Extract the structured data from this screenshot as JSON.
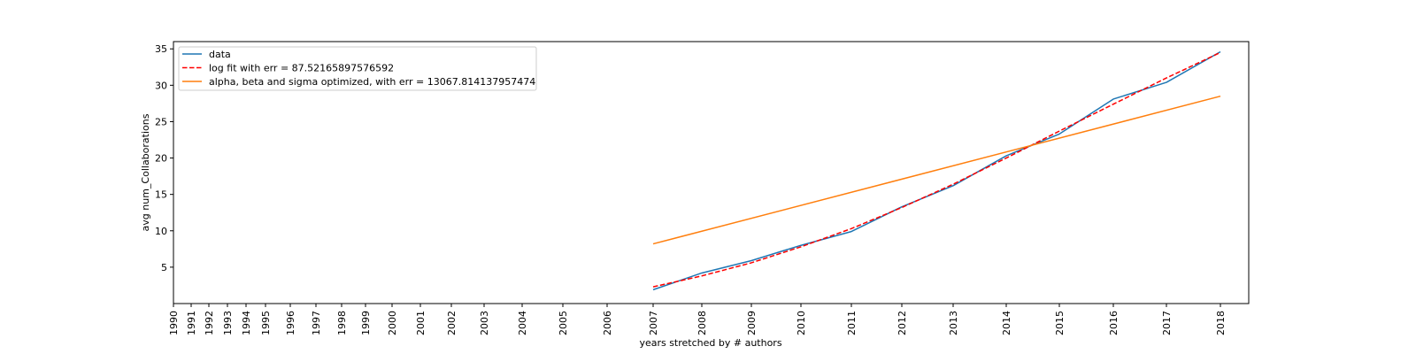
{
  "chart_data": {
    "type": "line",
    "xlabel": "years stretched by # authors",
    "ylabel": "avg num_Collaborations",
    "ylim": [
      0,
      36
    ],
    "yticks": [
      5,
      10,
      15,
      20,
      25,
      30,
      35
    ],
    "x_tick_labels": [
      "1990",
      "1991",
      "1992",
      "1993",
      "1994",
      "1995",
      "1996",
      "1997",
      "1998",
      "1999",
      "2000",
      "2001",
      "2002",
      "2003",
      "2004",
      "2005",
      "2006",
      "2007",
      "2008",
      "2009",
      "2010",
      "2011",
      "2012",
      "2013",
      "2014",
      "2015",
      "2016",
      "2017",
      "2018"
    ],
    "grid": false,
    "legend_position": "upper-left",
    "series": [
      {
        "name": "data",
        "color": "#1f77b4",
        "dash": "solid",
        "x": [
          "2007",
          "2008",
          "2009",
          "2010",
          "2011",
          "2012",
          "2013",
          "2014",
          "2015",
          "2016",
          "2017",
          "2018"
        ],
        "values": [
          1.9,
          4.2,
          5.9,
          8.0,
          9.9,
          13.3,
          16.2,
          20.3,
          23.3,
          28.1,
          30.4,
          34.6
        ]
      },
      {
        "name": "log fit with err = 87.52165897576592",
        "color": "#ff0000",
        "dash": "dashed",
        "x": [
          "2007",
          "2008",
          "2009",
          "2010",
          "2011",
          "2012",
          "2013",
          "2014",
          "2015",
          "2016",
          "2017",
          "2018"
        ],
        "values": [
          2.3,
          3.8,
          5.6,
          7.8,
          10.3,
          13.2,
          16.4,
          20.0,
          23.7,
          27.4,
          31.0,
          34.5
        ]
      },
      {
        "name": "alpha, beta and sigma optimized, with err = 13067.814137957474",
        "color": "#ff7f0e",
        "dash": "solid",
        "x": [
          "2007",
          "2018"
        ],
        "values": [
          8.2,
          28.5
        ]
      }
    ]
  }
}
